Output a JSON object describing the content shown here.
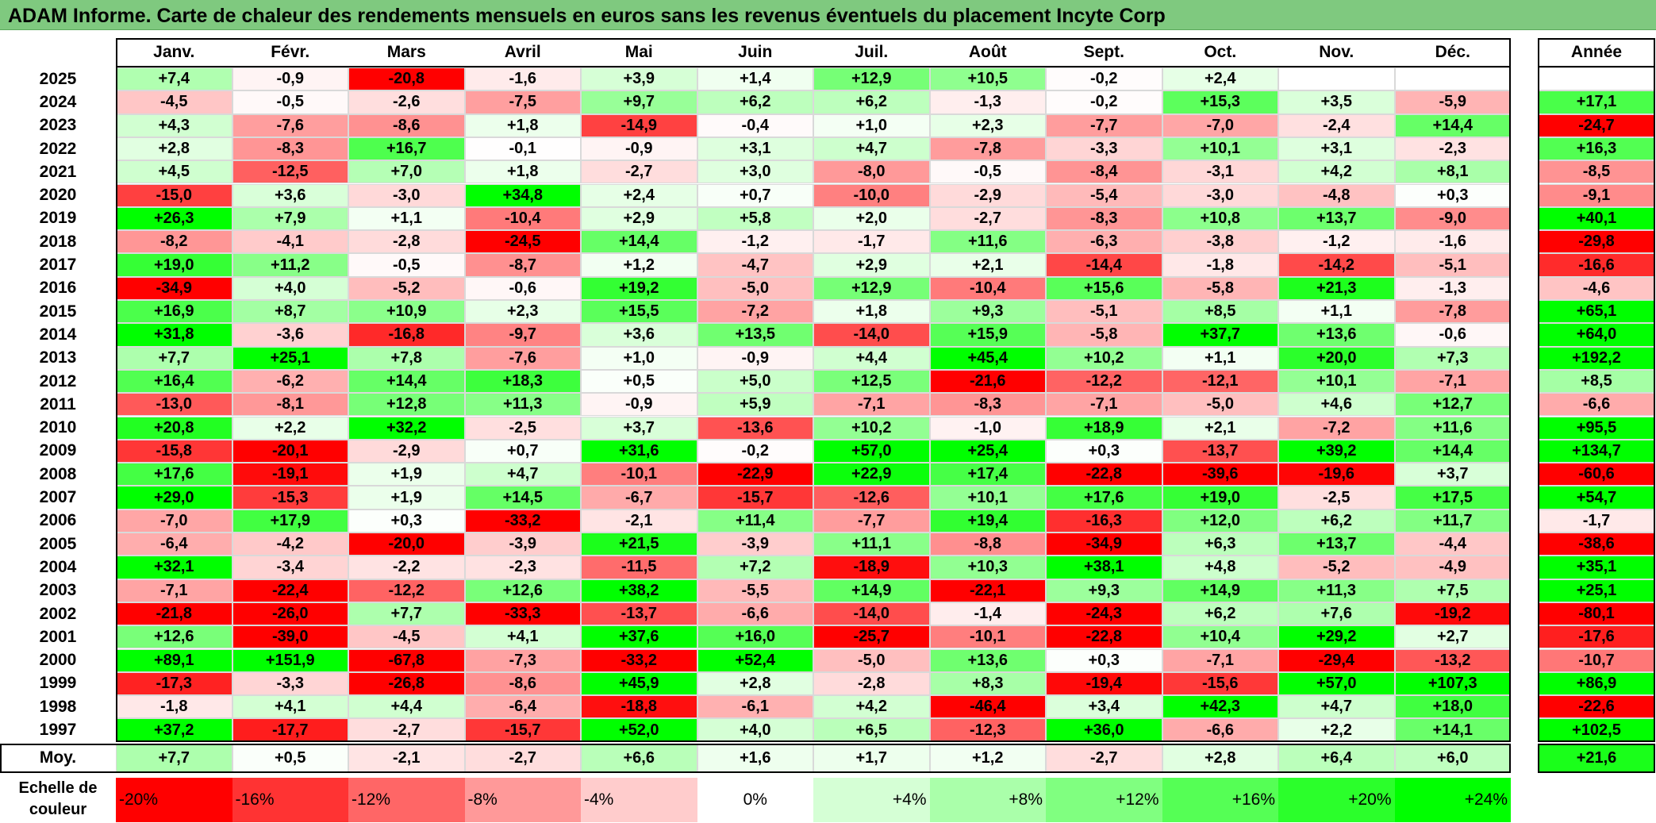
{
  "title": "ADAM Informe. Carte de chaleur des rendements mensuels en euros sans les revenus éventuels du placement Incyte Corp",
  "chart_data": {
    "type": "heatmap",
    "title": "ADAM Informe. Carte de chaleur des rendements mensuels en euros sans les revenus éventuels du placement Incyte Corp",
    "columns": [
      "Janv.",
      "Févr.",
      "Mars",
      "Avril",
      "Mai",
      "Juin",
      "Juil.",
      "Août",
      "Sept.",
      "Oct.",
      "Nov.",
      "Déc."
    ],
    "annual_header": "Année",
    "average_label": "Moy.",
    "rows": [
      {
        "year": "2025",
        "values": [
          "+7,4",
          "-0,9",
          "-20,8",
          "-1,6",
          "+3,9",
          "+1,4",
          "+12,9",
          "+10,5",
          "-0,2",
          "+2,4",
          "",
          ""
        ],
        "annual": ""
      },
      {
        "year": "2024",
        "values": [
          "-4,5",
          "-0,5",
          "-2,6",
          "-7,5",
          "+9,7",
          "+6,2",
          "+6,2",
          "-1,3",
          "-0,2",
          "+15,3",
          "+3,5",
          "-5,9"
        ],
        "annual": "+17,1"
      },
      {
        "year": "2023",
        "values": [
          "+4,3",
          "-7,6",
          "-8,6",
          "+1,8",
          "-14,9",
          "-0,4",
          "+1,0",
          "+2,3",
          "-7,7",
          "-7,0",
          "-2,4",
          "+14,4"
        ],
        "annual": "-24,7"
      },
      {
        "year": "2022",
        "values": [
          "+2,8",
          "-8,3",
          "+16,7",
          "-0,1",
          "-0,9",
          "+3,1",
          "+4,7",
          "-7,8",
          "-3,3",
          "+10,1",
          "+3,1",
          "-2,3"
        ],
        "annual": "+16,3"
      },
      {
        "year": "2021",
        "values": [
          "+4,5",
          "-12,5",
          "+7,0",
          "+1,8",
          "-2,7",
          "+3,0",
          "-8,0",
          "-0,5",
          "-8,4",
          "-3,1",
          "+4,2",
          "+8,1"
        ],
        "annual": "-8,5"
      },
      {
        "year": "2020",
        "values": [
          "-15,0",
          "+3,6",
          "-3,0",
          "+34,8",
          "+2,4",
          "+0,7",
          "-10,0",
          "-2,9",
          "-5,4",
          "-3,0",
          "-4,8",
          "+0,3"
        ],
        "annual": "-9,1"
      },
      {
        "year": "2019",
        "values": [
          "+26,3",
          "+7,9",
          "+1,1",
          "-10,4",
          "+2,9",
          "+5,8",
          "+2,0",
          "-2,7",
          "-8,3",
          "+10,8",
          "+13,7",
          "-9,0"
        ],
        "annual": "+40,1"
      },
      {
        "year": "2018",
        "values": [
          "-8,2",
          "-4,1",
          "-2,8",
          "-24,5",
          "+14,4",
          "-1,2",
          "-1,7",
          "+11,6",
          "-6,3",
          "-3,8",
          "-1,2",
          "-1,6"
        ],
        "annual": "-29,8"
      },
      {
        "year": "2017",
        "values": [
          "+19,0",
          "+11,2",
          "-0,5",
          "-8,7",
          "+1,2",
          "-4,7",
          "+2,9",
          "+2,1",
          "-14,4",
          "-1,8",
          "-14,2",
          "-5,1"
        ],
        "annual": "-16,6"
      },
      {
        "year": "2016",
        "values": [
          "-34,9",
          "+4,0",
          "-5,2",
          "-0,6",
          "+19,2",
          "-5,0",
          "+12,9",
          "-10,4",
          "+15,6",
          "-5,8",
          "+21,3",
          "-1,3"
        ],
        "annual": "-4,6"
      },
      {
        "year": "2015",
        "values": [
          "+16,9",
          "+8,7",
          "+10,9",
          "+2,3",
          "+15,5",
          "-7,2",
          "+1,8",
          "+9,3",
          "-5,1",
          "+8,5",
          "+1,1",
          "-7,8"
        ],
        "annual": "+65,1"
      },
      {
        "year": "2014",
        "values": [
          "+31,8",
          "-3,6",
          "-16,8",
          "-9,7",
          "+3,6",
          "+13,5",
          "-14,0",
          "+15,9",
          "-5,8",
          "+37,7",
          "+13,6",
          "-0,6"
        ],
        "annual": "+64,0"
      },
      {
        "year": "2013",
        "values": [
          "+7,7",
          "+25,1",
          "+7,8",
          "-7,6",
          "+1,0",
          "-0,9",
          "+4,4",
          "+45,4",
          "+10,2",
          "+1,1",
          "+20,0",
          "+7,3"
        ],
        "annual": "+192,2"
      },
      {
        "year": "2012",
        "values": [
          "+16,4",
          "-6,2",
          "+14,4",
          "+18,3",
          "+0,5",
          "+5,0",
          "+12,5",
          "-21,6",
          "-12,2",
          "-12,1",
          "+10,1",
          "-7,1"
        ],
        "annual": "+8,5"
      },
      {
        "year": "2011",
        "values": [
          "-13,0",
          "-8,1",
          "+12,8",
          "+11,3",
          "-0,9",
          "+5,9",
          "-7,1",
          "-8,3",
          "-7,1",
          "-5,0",
          "+4,6",
          "+12,7"
        ],
        "annual": "-6,6"
      },
      {
        "year": "2010",
        "values": [
          "+20,8",
          "+2,2",
          "+32,2",
          "-2,5",
          "+3,7",
          "-13,6",
          "+10,2",
          "-1,0",
          "+18,9",
          "+2,1",
          "-7,2",
          "+11,6"
        ],
        "annual": "+95,5"
      },
      {
        "year": "2009",
        "values": [
          "-15,8",
          "-20,1",
          "-2,9",
          "+0,7",
          "+31,6",
          "-0,2",
          "+57,0",
          "+25,4",
          "+0,3",
          "-13,7",
          "+39,2",
          "+14,4"
        ],
        "annual": "+134,7"
      },
      {
        "year": "2008",
        "values": [
          "+17,6",
          "-19,1",
          "+1,9",
          "+4,7",
          "-10,1",
          "-22,9",
          "+22,9",
          "+17,4",
          "-22,8",
          "-39,6",
          "-19,6",
          "+3,7"
        ],
        "annual": "-60,6"
      },
      {
        "year": "2007",
        "values": [
          "+29,0",
          "-15,3",
          "+1,9",
          "+14,5",
          "-6,7",
          "-15,7",
          "-12,6",
          "+10,1",
          "+17,6",
          "+19,0",
          "-2,5",
          "+17,5"
        ],
        "annual": "+54,7"
      },
      {
        "year": "2006",
        "values": [
          "-7,0",
          "+17,9",
          "+0,3",
          "-33,2",
          "-2,1",
          "+11,4",
          "-7,7",
          "+19,4",
          "-16,3",
          "+12,0",
          "+6,2",
          "+11,7"
        ],
        "annual": "-1,7"
      },
      {
        "year": "2005",
        "values": [
          "-6,4",
          "-4,2",
          "-20,0",
          "-3,9",
          "+21,5",
          "-3,9",
          "+11,1",
          "-8,8",
          "-34,9",
          "+6,3",
          "+13,7",
          "-4,4"
        ],
        "annual": "-38,6"
      },
      {
        "year": "2004",
        "values": [
          "+32,1",
          "-3,4",
          "-2,2",
          "-2,3",
          "-11,5",
          "+7,2",
          "-18,9",
          "+10,3",
          "+38,1",
          "+4,8",
          "-5,2",
          "-4,9"
        ],
        "annual": "+35,1"
      },
      {
        "year": "2003",
        "values": [
          "-7,1",
          "-22,4",
          "-12,2",
          "+12,6",
          "+38,2",
          "-5,5",
          "+14,9",
          "-22,1",
          "+9,3",
          "+14,9",
          "+11,3",
          "+7,5"
        ],
        "annual": "+25,1"
      },
      {
        "year": "2002",
        "values": [
          "-21,8",
          "-26,0",
          "+7,7",
          "-33,3",
          "-13,7",
          "-6,6",
          "-14,0",
          "-1,4",
          "-24,3",
          "+6,2",
          "+7,6",
          "-19,2"
        ],
        "annual": "-80,1"
      },
      {
        "year": "2001",
        "values": [
          "+12,6",
          "-39,0",
          "-4,5",
          "+4,1",
          "+37,6",
          "+16,0",
          "-25,7",
          "-10,1",
          "-22,8",
          "+10,4",
          "+29,2",
          "+2,7"
        ],
        "annual": "-17,6"
      },
      {
        "year": "2000",
        "values": [
          "+89,1",
          "+151,9",
          "-67,8",
          "-7,3",
          "-33,2",
          "+52,4",
          "-5,0",
          "+13,6",
          "+0,3",
          "-7,1",
          "-29,4",
          "-13,2"
        ],
        "annual": "-10,7"
      },
      {
        "year": "1999",
        "values": [
          "-17,3",
          "-3,3",
          "-26,8",
          "-8,6",
          "+45,9",
          "+2,8",
          "-2,8",
          "+8,3",
          "-19,4",
          "-15,6",
          "+57,0",
          "+107,3"
        ],
        "annual": "+86,9"
      },
      {
        "year": "1998",
        "values": [
          "-1,8",
          "+4,1",
          "+4,4",
          "-6,4",
          "-18,8",
          "-6,1",
          "+4,2",
          "-46,4",
          "+3,4",
          "+42,3",
          "+4,7",
          "+18,0"
        ],
        "annual": "-22,6"
      },
      {
        "year": "1997",
        "values": [
          "+37,2",
          "-17,7",
          "-2,7",
          "-15,7",
          "+52,0",
          "+4,0",
          "+6,5",
          "-12,3",
          "+36,0",
          "-6,6",
          "+2,2",
          "+14,1"
        ],
        "annual": "+102,5"
      }
    ],
    "averages": [
      "+7,7",
      "+0,5",
      "-2,1",
      "-2,7",
      "+6,6",
      "+1,6",
      "+1,7",
      "+1,2",
      "-2,7",
      "+2,8",
      "+6,4",
      "+6,0"
    ],
    "average_annual": "+21,6",
    "color_scale": {
      "label": "Echelle de couleur",
      "stops": [
        "-20%",
        "-16%",
        "-12%",
        "-8%",
        "-4%",
        "0%",
        "+4%",
        "+8%",
        "+12%",
        "+16%",
        "+20%",
        "+24%"
      ],
      "negative_color": "#ff0000",
      "neutral_color": "#ffffff",
      "positive_color": "#00ff00"
    }
  }
}
